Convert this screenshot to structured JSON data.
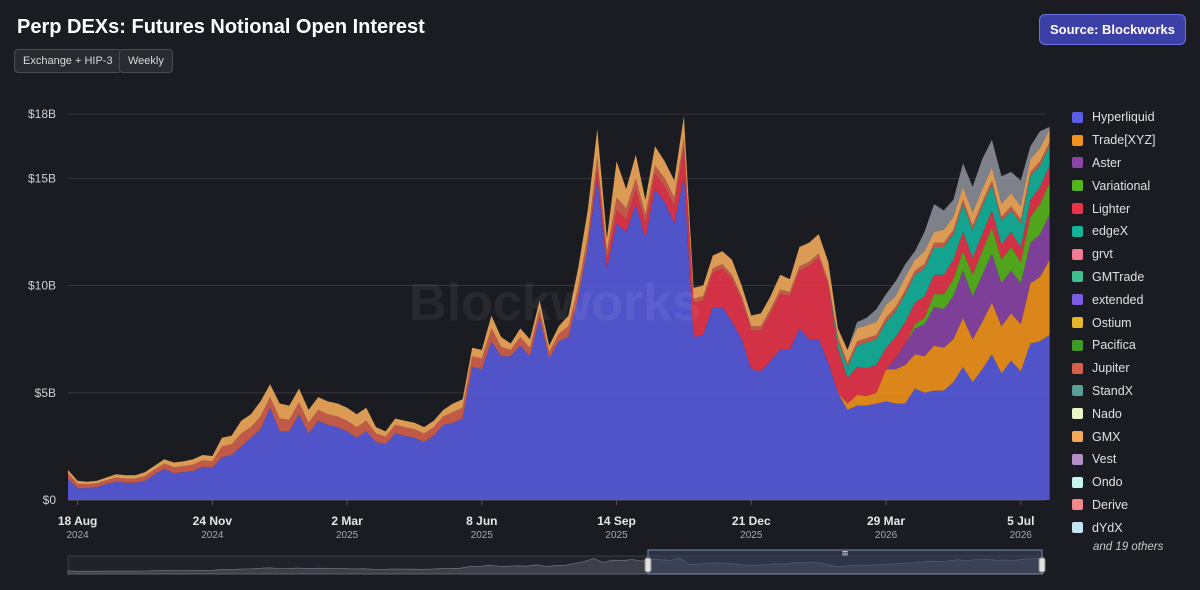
{
  "header": {
    "title": "Perp DEXs: Futures Notional Open Interest",
    "source_button": "Source: Blockworks",
    "filters": [
      "Exchange + HIP-3",
      "Weekly"
    ]
  },
  "watermark": "Blockworks",
  "legend": {
    "items": [
      {
        "label": "Hyperliquid",
        "color": "#5a5ee6"
      },
      {
        "label": "Trade[XYZ]",
        "color": "#f0921b"
      },
      {
        "label": "Aster",
        "color": "#8a44a6"
      },
      {
        "label": "Variational",
        "color": "#56b51c"
      },
      {
        "label": "Lighter",
        "color": "#e8344a"
      },
      {
        "label": "edgeX",
        "color": "#14b39a"
      },
      {
        "label": "grvt",
        "color": "#f07b92"
      },
      {
        "label": "GMTrade",
        "color": "#3fbf8f"
      },
      {
        "label": "extended",
        "color": "#7a5ce0"
      },
      {
        "label": "Ostium",
        "color": "#e6b62a"
      },
      {
        "label": "Pacifica",
        "color": "#3c9a28"
      },
      {
        "label": "Jupiter",
        "color": "#d4604c"
      },
      {
        "label": "StandX",
        "color": "#5a9e94"
      },
      {
        "label": "Nado",
        "color": "#eef5c8"
      },
      {
        "label": "GMX",
        "color": "#f2aa5a"
      },
      {
        "label": "Vest",
        "color": "#b28fc4"
      },
      {
        "label": "Ondo",
        "color": "#c6f3ee"
      },
      {
        "label": "Derive",
        "color": "#f0888e"
      },
      {
        "label": "dYdX",
        "color": "#c4e3f5"
      }
    ],
    "more": "and 19 others"
  },
  "chart_data": {
    "type": "area",
    "stacked": true,
    "title": "Perp DEXs: Futures Notional Open Interest",
    "ylabel": "",
    "xlabel": "",
    "ylim": [
      0,
      18
    ],
    "y_unit": "$B",
    "y_ticks": [
      "$0",
      "$5B",
      "$10B",
      "$15B",
      "$18B"
    ],
    "y_tick_values": [
      0,
      5,
      10,
      15,
      18
    ],
    "x_ticks": [
      {
        "label": "18 Aug",
        "year": "2024",
        "week": 1
      },
      {
        "label": "24 Nov",
        "year": "2024",
        "week": 15
      },
      {
        "label": "2 Mar",
        "year": "2025",
        "week": 29
      },
      {
        "label": "8 Jun",
        "year": "2025",
        "week": 43
      },
      {
        "label": "14 Sep",
        "year": "2025",
        "week": 57
      },
      {
        "label": "21 Dec",
        "year": "2025",
        "week": 71
      },
      {
        "label": "29 Mar",
        "year": "2026",
        "week": 85
      },
      {
        "label": "5 Jul",
        "year": "2026",
        "week": 99
      }
    ],
    "x_range_weeks": [
      0,
      101
    ],
    "grid": true,
    "legend_position": "right",
    "total": [
      1.4,
      0.9,
      0.85,
      0.9,
      1.05,
      1.2,
      1.15,
      1.15,
      1.3,
      1.6,
      1.9,
      1.75,
      1.8,
      1.9,
      2.1,
      2.05,
      2.9,
      3.0,
      3.7,
      4.0,
      4.6,
      5.4,
      4.5,
      4.4,
      5.2,
      4.2,
      4.8,
      4.6,
      4.5,
      4.3,
      4.0,
      4.3,
      3.4,
      3.2,
      3.8,
      3.7,
      3.6,
      3.4,
      3.7,
      4.2,
      4.5,
      4.7,
      7.1,
      7.0,
      8.6,
      7.6,
      7.3,
      8.0,
      7.5,
      9.3,
      7.2,
      8.1,
      8.6,
      10.8,
      13.5,
      17.3,
      12.2,
      15.2,
      14.5,
      16.1,
      14.0,
      16.5,
      15.8,
      14.9,
      17.9,
      9.9,
      10.0,
      11.4,
      11.6,
      11.2,
      10.0,
      8.6,
      8.7,
      9.5,
      10.5,
      10.3,
      11.8,
      12.0,
      12.4,
      11.1,
      8.0,
      6.7,
      8.3,
      8.5,
      8.9,
      9.6,
      10.2,
      11.0,
      11.6,
      12.5,
      13.8,
      13.5,
      14.0,
      15.7,
      14.6,
      15.9,
      16.8,
      15.1,
      15.3,
      14.9,
      16.5,
      17.2,
      17.4
    ],
    "series": [
      {
        "name": "Hyperliquid",
        "values": [
          1.0,
          0.55,
          0.55,
          0.6,
          0.75,
          0.85,
          0.8,
          0.8,
          0.9,
          1.2,
          1.45,
          1.25,
          1.3,
          1.35,
          1.55,
          1.5,
          2.0,
          2.1,
          2.5,
          2.9,
          3.3,
          4.3,
          3.2,
          3.2,
          4.0,
          3.1,
          3.7,
          3.5,
          3.4,
          3.2,
          2.9,
          3.2,
          2.7,
          2.6,
          3.1,
          3.0,
          2.9,
          2.7,
          3.0,
          3.5,
          3.6,
          3.8,
          6.2,
          6.1,
          7.4,
          6.7,
          6.7,
          7.2,
          6.7,
          8.5,
          6.6,
          7.4,
          7.6,
          9.4,
          11.8,
          15.0,
          10.8,
          12.9,
          12.5,
          13.8,
          12.2,
          14.5,
          13.9,
          12.9,
          15.1,
          7.6,
          7.7,
          9.0,
          9.0,
          8.3,
          7.5,
          6.1,
          6.0,
          6.5,
          7.0,
          7.0,
          8.0,
          7.5,
          7.5,
          6.4,
          5.0,
          4.2,
          4.4,
          4.4,
          4.5,
          4.6,
          4.5,
          4.5,
          5.2,
          5.0,
          5.1,
          5.1,
          5.5,
          6.2,
          5.5,
          6.1,
          6.8,
          5.9,
          6.5,
          6.0,
          7.3,
          7.4,
          7.7
        ]
      },
      {
        "name": "Trade[XYZ]",
        "values": [
          0,
          0,
          0,
          0,
          0,
          0,
          0,
          0,
          0,
          0,
          0,
          0,
          0,
          0,
          0,
          0,
          0,
          0,
          0,
          0,
          0,
          0,
          0,
          0,
          0,
          0,
          0,
          0,
          0,
          0,
          0,
          0,
          0,
          0,
          0,
          0,
          0,
          0,
          0,
          0,
          0,
          0,
          0,
          0,
          0,
          0,
          0,
          0,
          0,
          0,
          0,
          0,
          0,
          0,
          0,
          0,
          0,
          0,
          0,
          0,
          0,
          0,
          0,
          0,
          0,
          0,
          0,
          0,
          0,
          0,
          0,
          0,
          0,
          0,
          0,
          0,
          0,
          0,
          0,
          0,
          0,
          0.3,
          0.5,
          0.45,
          0.5,
          1.5,
          1.6,
          1.8,
          1.6,
          1.7,
          2.1,
          2.0,
          2.0,
          2.3,
          2.0,
          2.2,
          2.4,
          2.2,
          2.2,
          2.2,
          2.8,
          3.0,
          3.5
        ]
      },
      {
        "name": "Aster",
        "values": [
          0,
          0,
          0,
          0,
          0,
          0,
          0,
          0,
          0,
          0,
          0,
          0,
          0,
          0,
          0,
          0,
          0,
          0,
          0,
          0,
          0,
          0,
          0,
          0,
          0,
          0,
          0,
          0,
          0,
          0,
          0,
          0,
          0,
          0,
          0,
          0,
          0,
          0,
          0,
          0,
          0,
          0,
          0,
          0,
          0,
          0,
          0,
          0,
          0,
          0,
          0,
          0,
          0,
          0,
          0,
          0,
          0,
          0,
          0,
          0,
          0,
          0,
          0,
          0,
          0,
          0,
          0,
          0,
          0,
          0,
          0,
          0,
          0,
          0,
          0,
          0,
          0,
          0,
          0,
          0,
          0,
          0,
          0,
          0,
          0,
          0,
          0.5,
          1.0,
          1.2,
          1.5,
          1.8,
          1.8,
          2.0,
          2.2,
          2.0,
          2.2,
          2.3,
          2.0,
          2.0,
          1.9,
          1.9,
          2.0,
          2.1
        ]
      },
      {
        "name": "Variational",
        "values": [
          0,
          0,
          0,
          0,
          0,
          0,
          0,
          0,
          0,
          0,
          0,
          0,
          0,
          0,
          0,
          0,
          0,
          0,
          0,
          0,
          0,
          0,
          0,
          0,
          0,
          0,
          0,
          0,
          0,
          0,
          0,
          0,
          0,
          0,
          0,
          0,
          0,
          0,
          0,
          0,
          0,
          0,
          0,
          0,
          0,
          0,
          0,
          0,
          0,
          0,
          0,
          0,
          0,
          0,
          0,
          0,
          0,
          0,
          0,
          0,
          0,
          0,
          0,
          0,
          0,
          0,
          0,
          0,
          0,
          0,
          0,
          0,
          0,
          0,
          0,
          0,
          0,
          0,
          0,
          0,
          0,
          0,
          0,
          0,
          0,
          0,
          0,
          0,
          0.2,
          0.3,
          0.6,
          0.7,
          0.8,
          0.9,
          1.0,
          1.1,
          1.2,
          1.1,
          1.1,
          1.0,
          1.2,
          1.4,
          1.5
        ]
      },
      {
        "name": "Lighter",
        "values": [
          0,
          0,
          0,
          0,
          0,
          0,
          0,
          0,
          0,
          0,
          0,
          0,
          0,
          0,
          0,
          0,
          0,
          0,
          0,
          0,
          0,
          0,
          0,
          0,
          0,
          0,
          0,
          0,
          0,
          0,
          0,
          0,
          0,
          0,
          0,
          0,
          0,
          0,
          0,
          0,
          0,
          0,
          0,
          0,
          0,
          0,
          0,
          0,
          0,
          0,
          0,
          0,
          0,
          0,
          0,
          0.4,
          0.4,
          0.6,
          0.6,
          0.7,
          0.7,
          0.7,
          0.7,
          0.8,
          1.3,
          1.6,
          1.6,
          1.6,
          1.8,
          2.0,
          1.8,
          1.8,
          1.9,
          2.2,
          2.6,
          2.5,
          2.7,
          3.4,
          3.8,
          3.6,
          2.1,
          1.2,
          1.3,
          1.3,
          1.3,
          1.0,
          1.0,
          1.0,
          1.0,
          1.0,
          0.9,
          0.9,
          0.9,
          0.9,
          0.8,
          0.8,
          0.8,
          0.7,
          0.7,
          0.7,
          0.8,
          0.8,
          0.8
        ]
      },
      {
        "name": "edgeX",
        "values": [
          0,
          0,
          0,
          0,
          0,
          0,
          0,
          0,
          0,
          0,
          0,
          0,
          0,
          0,
          0,
          0,
          0,
          0,
          0,
          0,
          0,
          0,
          0,
          0,
          0,
          0,
          0,
          0,
          0,
          0,
          0,
          0,
          0,
          0,
          0,
          0,
          0,
          0,
          0,
          0,
          0,
          0,
          0,
          0,
          0,
          0,
          0,
          0,
          0,
          0,
          0,
          0,
          0,
          0,
          0,
          0,
          0,
          0,
          0,
          0,
          0,
          0,
          0,
          0,
          0,
          0,
          0,
          0,
          0,
          0,
          0,
          0,
          0,
          0,
          0,
          0,
          0,
          0,
          0,
          0,
          0.3,
          0.5,
          1.0,
          1.2,
          1.2,
          1.2,
          1.2,
          1.3,
          1.3,
          1.3,
          1.3,
          1.3,
          1.2,
          1.3,
          1.3,
          1.3,
          1.2,
          1.1,
          1.0,
          1.1,
          1.1,
          1.0,
          0.9
        ]
      },
      {
        "name": "Jupiter",
        "values": [
          0.25,
          0.2,
          0.18,
          0.18,
          0.18,
          0.2,
          0.2,
          0.2,
          0.22,
          0.22,
          0.25,
          0.28,
          0.28,
          0.3,
          0.3,
          0.3,
          0.5,
          0.5,
          0.6,
          0.5,
          0.6,
          0.5,
          0.6,
          0.55,
          0.55,
          0.5,
          0.5,
          0.5,
          0.5,
          0.5,
          0.5,
          0.5,
          0.4,
          0.35,
          0.4,
          0.4,
          0.4,
          0.4,
          0.4,
          0.4,
          0.5,
          0.5,
          0.5,
          0.5,
          0.6,
          0.45,
          0.3,
          0.4,
          0.4,
          0.4,
          0.3,
          0.35,
          0.5,
          0.5,
          0.5,
          0.6,
          0.4,
          0.6,
          0.5,
          0.5,
          0.4,
          0.4,
          0.4,
          0.4,
          0.5,
          0.2,
          0.2,
          0.2,
          0.2,
          0.2,
          0.2,
          0.2,
          0.2,
          0.2,
          0.2,
          0.2,
          0.2,
          0.2,
          0.2,
          0.2,
          0.2,
          0.2,
          0.2,
          0.2,
          0.2,
          0.2,
          0.2,
          0.2,
          0.2,
          0.2,
          0.2,
          0.2,
          0.2,
          0.2,
          0.2,
          0.2,
          0.2,
          0.2,
          0.2,
          0.2,
          0.2,
          0.2,
          0.2
        ]
      },
      {
        "name": "GMX",
        "values": [
          0.15,
          0.15,
          0.12,
          0.12,
          0.12,
          0.15,
          0.15,
          0.15,
          0.18,
          0.18,
          0.2,
          0.22,
          0.22,
          0.25,
          0.25,
          0.25,
          0.4,
          0.4,
          0.6,
          0.6,
          0.7,
          0.6,
          0.7,
          0.65,
          0.65,
          0.6,
          0.6,
          0.6,
          0.6,
          0.6,
          0.6,
          0.6,
          0.3,
          0.25,
          0.3,
          0.3,
          0.3,
          0.3,
          0.3,
          0.3,
          0.4,
          0.4,
          0.4,
          0.4,
          0.6,
          0.45,
          0.3,
          0.4,
          0.4,
          0.4,
          0.3,
          0.35,
          0.5,
          0.9,
          1.2,
          1.3,
          0.6,
          1.7,
          0.9,
          1.1,
          0.7,
          0.9,
          0.8,
          0.8,
          1.0,
          0.5,
          0.5,
          0.6,
          0.6,
          0.7,
          0.5,
          0.5,
          0.6,
          0.6,
          0.7,
          0.6,
          0.9,
          0.9,
          0.9,
          0.9,
          0.4,
          0.6,
          0.6,
          0.6,
          0.6,
          0.6,
          0.5,
          0.6,
          0.5,
          0.6,
          0.5,
          0.6,
          0.6,
          0.6,
          0.6,
          0.6,
          0.6,
          0.6,
          0.6,
          0.6,
          0.6,
          0.6,
          0.6
        ]
      }
    ]
  },
  "navigator": {
    "handle_grip": "≡"
  }
}
